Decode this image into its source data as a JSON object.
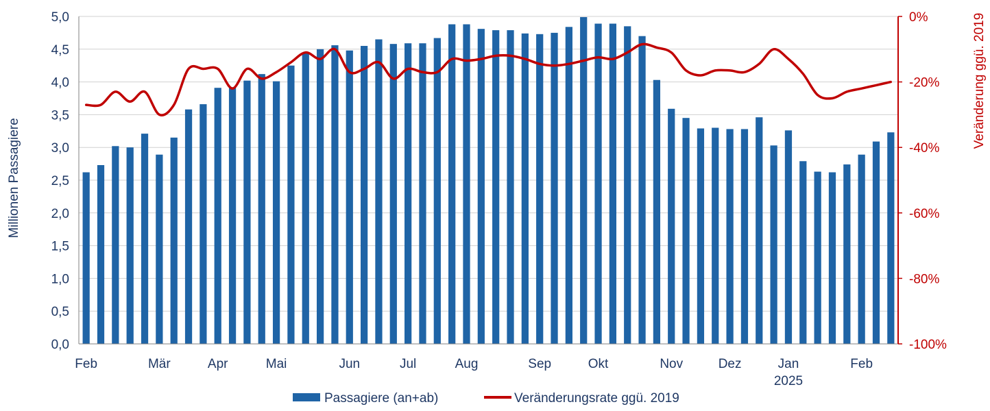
{
  "chart_data": {
    "type": "bar+line",
    "title": "",
    "ylabel_left": "Millionen Passagiere",
    "ylabel_right": "Veränderung ggü. 2019",
    "ylim_left": [
      0,
      5
    ],
    "ylim_right": [
      -100,
      0
    ],
    "left_ticks": [
      "0,0",
      "0,5",
      "1,0",
      "1,5",
      "2,0",
      "2,5",
      "3,0",
      "3,5",
      "4,0",
      "4,5",
      "5,0"
    ],
    "right_ticks": [
      "-100%",
      "-80%",
      "-60%",
      "-40%",
      "-20%",
      "0%"
    ],
    "x_labels": [
      {
        "label": "Feb",
        "index": 0
      },
      {
        "label": "Mär",
        "index": 5
      },
      {
        "label": "Apr",
        "index": 9
      },
      {
        "label": "Mai",
        "index": 13
      },
      {
        "label": "Jun",
        "index": 18
      },
      {
        "label": "Jul",
        "index": 22
      },
      {
        "label": "Aug",
        "index": 26
      },
      {
        "label": "Sep",
        "index": 31
      },
      {
        "label": "Okt",
        "index": 35
      },
      {
        "label": "Nov",
        "index": 40
      },
      {
        "label": "Dez",
        "index": 44
      },
      {
        "label": "Jan",
        "index": 48
      },
      {
        "label": "Feb",
        "index": 53
      }
    ],
    "year_label": {
      "label": "2025",
      "index": 48
    },
    "grid": true,
    "legend_position": "bottom-center",
    "series": [
      {
        "name": "Passagiere (an+ab)",
        "type": "bar",
        "axis": "left",
        "color": "#1f64a6",
        "values": [
          2.62,
          2.73,
          3.02,
          3.0,
          3.21,
          2.89,
          3.15,
          3.58,
          3.66,
          3.91,
          3.92,
          4.02,
          4.12,
          4.01,
          4.25,
          4.45,
          4.5,
          4.56,
          4.48,
          4.55,
          4.65,
          4.58,
          4.59,
          4.59,
          4.67,
          4.88,
          4.88,
          4.81,
          4.79,
          4.79,
          4.74,
          4.73,
          4.75,
          4.84,
          4.99,
          4.89,
          4.89,
          4.85,
          4.7,
          4.03,
          3.59,
          3.45,
          3.29,
          3.3,
          3.28,
          3.28,
          3.46,
          3.03,
          3.26,
          2.79,
          2.63,
          2.62,
          2.74,
          2.89,
          3.09,
          3.23
        ]
      },
      {
        "name": "Veränderungsrate ggü. 2019",
        "type": "line",
        "axis": "right",
        "color": "#c00000",
        "values": [
          -27,
          -27,
          -23,
          -26,
          -23,
          -30,
          -27,
          -16,
          -16,
          -16,
          -22,
          -16,
          -19,
          -17,
          -14,
          -11,
          -13,
          -10,
          -17,
          -16,
          -14,
          -19,
          -16,
          -17,
          -17,
          -13,
          -13.5,
          -13,
          -12,
          -12,
          -13,
          -14.5,
          -15,
          -14.5,
          -13.5,
          -12.5,
          -13,
          -11,
          -8.5,
          -9.5,
          -11,
          -16.5,
          -18,
          -16.5,
          -16.5,
          -17,
          -14.5,
          -10,
          -13,
          -17.5,
          -24,
          -25,
          -23,
          -22,
          -21,
          -20
        ]
      }
    ]
  }
}
